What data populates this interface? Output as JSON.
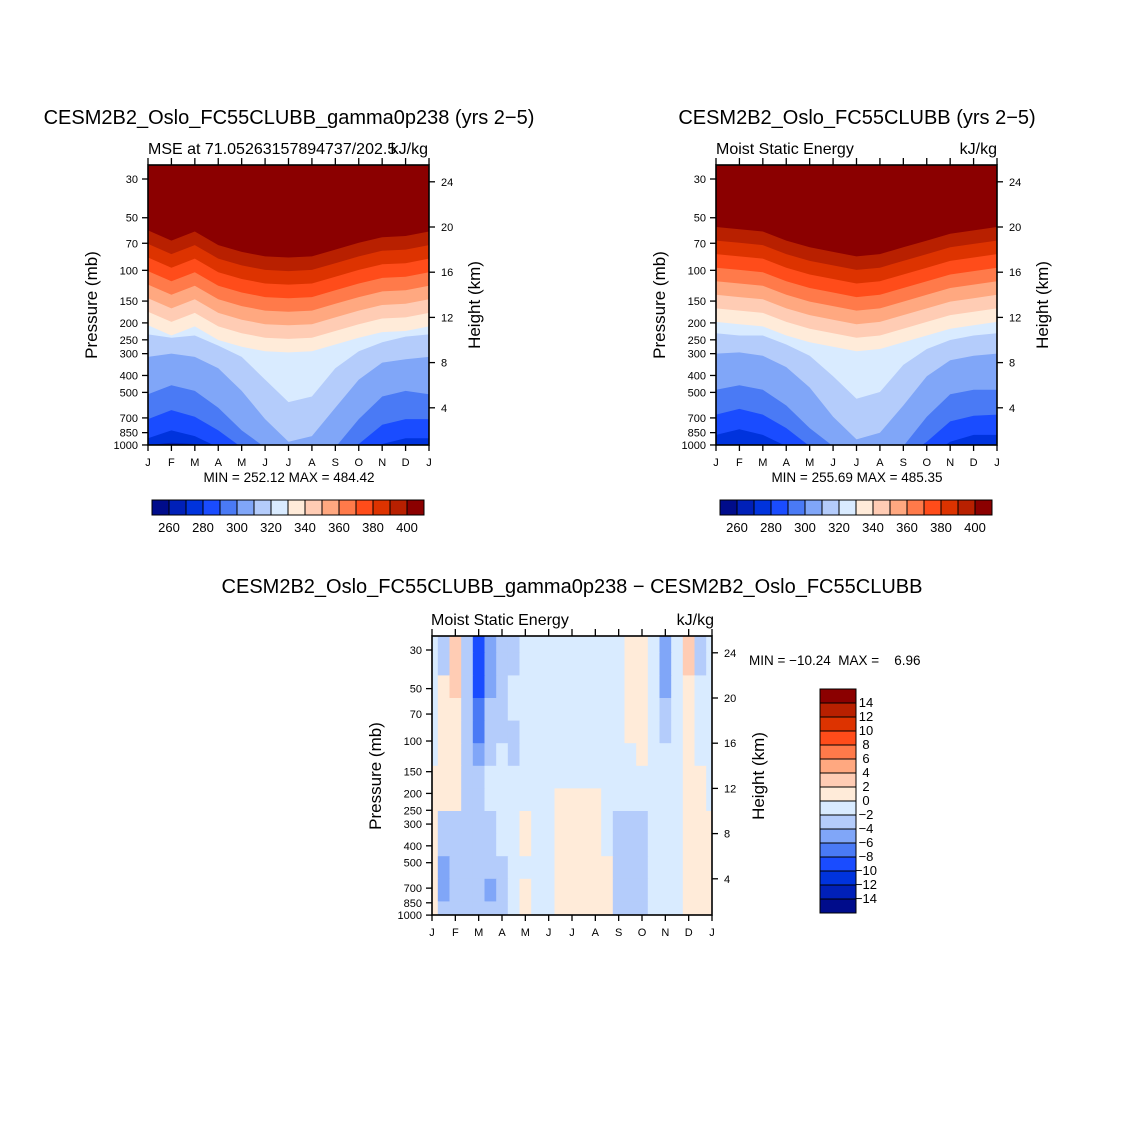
{
  "chart_data": [
    {
      "type": "heatmap",
      "title": "CESM2B2_Oslo_FC55CLUBB_gamma0p238 (yrs 2−5)",
      "subtitle_left": "MSE at 71.05263157894737/202.5",
      "subtitle_right": "kJ/kg",
      "ylabel": "Pressure (mb)",
      "ylabel_right": "Height (km)",
      "x_tick_labels": [
        "J",
        "F",
        "M",
        "A",
        "M",
        "J",
        "J",
        "A",
        "S",
        "O",
        "N",
        "D",
        "J"
      ],
      "y_ticks_pressure": [
        30,
        50,
        70,
        100,
        150,
        200,
        250,
        300,
        400,
        500,
        700,
        850,
        1000
      ],
      "y_ticks_height": [
        4,
        8,
        12,
        16,
        20,
        24
      ],
      "minmax_text": "MIN = 252.12  MAX = 484.42",
      "colorbar": {
        "levels": [
          260,
          270,
          280,
          290,
          300,
          310,
          320,
          330,
          340,
          350,
          360,
          370,
          380,
          390,
          400
        ],
        "labels": [
          "260",
          "280",
          "300",
          "320",
          "340",
          "360",
          "380",
          "400"
        ],
        "colors": [
          "#000c8b",
          "#0020b8",
          "#0033dd",
          "#1a4cff",
          "#4a7af5",
          "#80a6f8",
          "#b4ccfb",
          "#d9ebff",
          "#ffebd9",
          "#ffccb4",
          "#ffa880",
          "#ff7a4a",
          "#ff4c1a",
          "#dd3300",
          "#b82000",
          "#8b0000"
        ]
      },
      "contour_heights_km": {
        "260": [
          0.3,
          0.5,
          0.4,
          -0.5,
          -0.5,
          -0.5,
          -0.5,
          -0.5,
          -0.5,
          -0.5,
          -0.5,
          0.3,
          0.3
        ],
        "270": [
          0.7,
          0.9,
          0.8,
          0.2,
          -0.5,
          -0.5,
          -0.5,
          -0.5,
          -0.5,
          -0.5,
          0.3,
          0.6,
          0.7
        ],
        "280": [
          1.3,
          2.0,
          1.5,
          0.5,
          -0.5,
          -0.5,
          -0.5,
          -0.5,
          -0.5,
          -0.5,
          0.8,
          1.3,
          1.3
        ],
        "290": [
          3.0,
          3.8,
          3.2,
          2.0,
          0.5,
          -0.5,
          -0.5,
          -0.5,
          -0.5,
          0.8,
          2.5,
          3.0,
          3.0
        ],
        "300": [
          5.2,
          6.0,
          5.5,
          4.0,
          2.0,
          0.5,
          -0.5,
          -0.5,
          0.5,
          3.0,
          5.0,
          5.5,
          5.2
        ],
        "310": [
          8.5,
          8.8,
          8.5,
          7.5,
          5.5,
          3.0,
          1.0,
          1.5,
          4.0,
          6.5,
          8.0,
          8.3,
          8.5
        ],
        "320": [
          10.5,
          10.2,
          10.4,
          9.5,
          8.5,
          6.5,
          4.5,
          5.0,
          7.5,
          9.0,
          9.8,
          10.3,
          10.5
        ],
        "330": [
          11.3,
          10.4,
          11.2,
          10.0,
          9.4,
          9.0,
          8.9,
          9.0,
          9.6,
          10.2,
          10.7,
          10.8,
          11.2
        ],
        "340": [
          12.5,
          11.6,
          12.4,
          11.2,
          10.6,
          10.2,
          10.1,
          10.2,
          10.8,
          11.4,
          11.9,
          12.0,
          12.4
        ],
        "350": [
          13.7,
          12.8,
          13.6,
          12.4,
          11.8,
          11.4,
          11.3,
          11.4,
          12.0,
          12.6,
          13.1,
          13.2,
          13.6
        ],
        "360": [
          14.9,
          14.0,
          14.8,
          13.6,
          13.0,
          12.6,
          12.5,
          12.6,
          13.2,
          13.8,
          14.3,
          14.4,
          14.8
        ],
        "370": [
          16.1,
          15.2,
          16.0,
          14.8,
          14.2,
          13.8,
          13.7,
          13.8,
          14.4,
          15.0,
          15.5,
          15.6,
          16.0
        ],
        "380": [
          17.3,
          16.4,
          17.2,
          16.0,
          15.4,
          15.0,
          14.9,
          15.0,
          15.6,
          16.2,
          16.7,
          16.8,
          17.2
        ],
        "390": [
          18.5,
          17.6,
          18.4,
          17.2,
          16.6,
          16.2,
          16.1,
          16.2,
          16.8,
          17.4,
          17.9,
          18.0,
          18.4
        ],
        "400": [
          19.7,
          18.8,
          19.6,
          18.4,
          17.8,
          17.4,
          17.3,
          17.4,
          18.0,
          18.6,
          19.1,
          19.2,
          19.6
        ]
      }
    },
    {
      "type": "heatmap",
      "title": "CESM2B2_Oslo_FC55CLUBB (yrs 2−5)",
      "subtitle_left": "Moist Static Energy",
      "subtitle_right": "kJ/kg",
      "ylabel": "Pressure (mb)",
      "ylabel_right": "Height (km)",
      "x_tick_labels": [
        "J",
        "F",
        "M",
        "A",
        "M",
        "J",
        "J",
        "A",
        "S",
        "O",
        "N",
        "D",
        "J"
      ],
      "y_ticks_pressure": [
        30,
        50,
        70,
        100,
        150,
        200,
        250,
        300,
        400,
        500,
        700,
        850,
        1000
      ],
      "y_ticks_height": [
        4,
        8,
        12,
        16,
        20,
        24
      ],
      "minmax_text": "MIN = 255.69  MAX = 485.35",
      "colorbar": {
        "levels": [
          260,
          270,
          280,
          290,
          300,
          310,
          320,
          330,
          340,
          350,
          360,
          370,
          380,
          390,
          400
        ],
        "labels": [
          "260",
          "280",
          "300",
          "320",
          "340",
          "360",
          "380",
          "400"
        ],
        "colors": [
          "#000c8b",
          "#0020b8",
          "#0033dd",
          "#1a4cff",
          "#4a7af5",
          "#80a6f8",
          "#b4ccfb",
          "#d9ebff",
          "#ffebd9",
          "#ffccb4",
          "#ffa880",
          "#ff7a4a",
          "#ff4c1a",
          "#dd3300",
          "#b82000",
          "#8b0000"
        ]
      },
      "contour_heights_km": {
        "260": [
          0.3,
          0.4,
          0.3,
          -0.5,
          -0.5,
          -0.5,
          -0.5,
          -0.5,
          -0.5,
          -0.5,
          -0.5,
          0.2,
          0.3
        ],
        "270": [
          0.7,
          0.8,
          0.7,
          0.2,
          -0.5,
          -0.5,
          -0.5,
          -0.5,
          -0.5,
          -0.5,
          0.3,
          0.6,
          0.7
        ],
        "280": [
          1.6,
          2.1,
          1.6,
          0.6,
          -0.5,
          -0.5,
          -0.5,
          -0.5,
          -0.5,
          -0.5,
          1.0,
          1.6,
          1.6
        ],
        "290": [
          3.4,
          3.9,
          3.4,
          2.2,
          0.6,
          -0.5,
          -0.5,
          -0.5,
          -0.5,
          1.0,
          2.8,
          3.3,
          3.4
        ],
        "300": [
          5.6,
          6.0,
          5.6,
          4.2,
          2.2,
          0.6,
          -0.5,
          -0.5,
          0.6,
          3.2,
          5.2,
          5.6,
          5.6
        ],
        "310": [
          8.8,
          8.9,
          8.6,
          7.6,
          5.8,
          3.2,
          1.2,
          1.8,
          4.2,
          6.8,
          8.2,
          8.6,
          8.8
        ],
        "320": [
          10.6,
          10.4,
          10.4,
          9.6,
          8.6,
          6.8,
          4.8,
          5.4,
          7.8,
          9.2,
          10.0,
          10.4,
          10.6
        ],
        "330": [
          11.6,
          11.4,
          11.2,
          10.4,
          9.8,
          9.4,
          9.0,
          9.2,
          9.8,
          10.4,
          11.0,
          11.3,
          11.6
        ],
        "340": [
          12.8,
          12.6,
          12.4,
          11.6,
          11.0,
          10.6,
          10.2,
          10.4,
          11.0,
          11.6,
          12.2,
          12.5,
          12.8
        ],
        "350": [
          14.0,
          13.8,
          13.6,
          12.8,
          12.2,
          11.8,
          11.4,
          11.6,
          12.2,
          12.8,
          13.4,
          13.7,
          14.0
        ],
        "360": [
          15.2,
          15.0,
          14.8,
          14.0,
          13.4,
          13.0,
          12.6,
          12.8,
          13.4,
          14.0,
          14.6,
          14.9,
          15.2
        ],
        "370": [
          16.4,
          16.2,
          16.0,
          15.2,
          14.6,
          14.2,
          13.8,
          14.0,
          14.6,
          15.2,
          15.8,
          16.1,
          16.4
        ],
        "380": [
          17.6,
          17.4,
          17.2,
          16.4,
          15.8,
          15.4,
          15.0,
          15.2,
          15.8,
          16.4,
          17.0,
          17.3,
          17.6
        ],
        "390": [
          18.8,
          18.6,
          18.4,
          17.6,
          17.0,
          16.6,
          16.2,
          16.4,
          17.0,
          17.6,
          18.2,
          18.5,
          18.8
        ],
        "400": [
          20.0,
          19.8,
          19.6,
          18.8,
          18.2,
          17.8,
          17.4,
          17.6,
          18.2,
          18.8,
          19.4,
          19.7,
          20.0
        ]
      }
    },
    {
      "type": "heatmap",
      "title": "CESM2B2_Oslo_FC55CLUBB_gamma0p238 − CESM2B2_Oslo_FC55CLUBB",
      "subtitle_left": "Moist Static Energy",
      "subtitle_right": "kJ/kg",
      "ylabel": "Pressure (mb)",
      "ylabel_right": "Height (km)",
      "x_tick_labels": [
        "J",
        "F",
        "M",
        "A",
        "M",
        "J",
        "J",
        "A",
        "S",
        "O",
        "N",
        "D",
        "J"
      ],
      "y_ticks_pressure": [
        30,
        50,
        70,
        100,
        150,
        200,
        250,
        300,
        400,
        500,
        700,
        850,
        1000
      ],
      "y_ticks_height": [
        4,
        8,
        12,
        16,
        20,
        24
      ],
      "minmax_text": "MIN = −10.24  MAX =    6.96",
      "colorbar": {
        "levels": [
          -14,
          -12,
          -10,
          -8,
          -6,
          -4,
          -2,
          0,
          2,
          4,
          6,
          8,
          10,
          12,
          14
        ],
        "labels": [
          "14",
          "12",
          "10",
          "8",
          "6",
          "4",
          "2",
          "0",
          "−2",
          "−4",
          "−6",
          "−8",
          "−10",
          "−12",
          "−14"
        ],
        "colors": [
          "#000c8b",
          "#0020b8",
          "#0033dd",
          "#1a4cff",
          "#4a7af5",
          "#80a6f8",
          "#b4ccfb",
          "#d9ebff",
          "#ffebd9",
          "#ffccb4",
          "#ffa880",
          "#ff7a4a",
          "#ff4c1a",
          "#dd3300",
          "#b82000",
          "#8b0000"
        ]
      },
      "grid_x_half_months": 25,
      "grid_height_rows_km": [
        24,
        22,
        20,
        18,
        16,
        14,
        12,
        10,
        8,
        6,
        4,
        2,
        0
      ],
      "grid_values": [
        [
          -1,
          -3,
          3,
          -3,
          -9,
          -5,
          -3,
          -3,
          -1,
          -1,
          -1,
          -1,
          -1,
          -1,
          -1,
          -1,
          -1,
          1,
          1,
          -1,
          -5,
          -1,
          3,
          -3,
          -1
        ],
        [
          -1,
          -3,
          3,
          -3,
          -9,
          -5,
          -3,
          -3,
          -1,
          -1,
          -1,
          -1,
          -1,
          -1,
          -1,
          -1,
          -1,
          1,
          1,
          -1,
          -5,
          -1,
          3,
          -3,
          -1
        ],
        [
          -1,
          1,
          3,
          -3,
          -9,
          -5,
          -3,
          -1,
          -1,
          -1,
          -1,
          -1,
          -1,
          -1,
          -1,
          -1,
          -1,
          1,
          1,
          -1,
          -5,
          -1,
          1,
          -1,
          -1
        ],
        [
          -1,
          1,
          1,
          -3,
          -7,
          -3,
          -3,
          -1,
          -1,
          -1,
          -1,
          -1,
          -1,
          -1,
          -1,
          -1,
          -1,
          1,
          1,
          -1,
          -3,
          -1,
          1,
          -1,
          -1
        ],
        [
          -1,
          1,
          1,
          -3,
          -7,
          -3,
          -3,
          -3,
          -1,
          -1,
          -1,
          -1,
          -1,
          -1,
          -1,
          -1,
          -1,
          1,
          1,
          -1,
          -3,
          -1,
          1,
          -1,
          -1
        ],
        [
          -1,
          1,
          1,
          -3,
          -5,
          -3,
          -1,
          -3,
          -1,
          -1,
          -1,
          -1,
          -1,
          -1,
          -1,
          -1,
          -1,
          -1,
          1,
          -1,
          -1,
          -1,
          1,
          -1,
          -1
        ],
        [
          1,
          1,
          1,
          -3,
          -3,
          -1,
          -1,
          -1,
          -1,
          -1,
          -1,
          -1,
          -1,
          -1,
          -1,
          -1,
          -1,
          -1,
          -1,
          -1,
          -1,
          -1,
          1,
          1,
          -1
        ],
        [
          1,
          1,
          1,
          -3,
          -3,
          -1,
          -1,
          -1,
          -1,
          -1,
          -1,
          1,
          1,
          1,
          1,
          -1,
          -1,
          -1,
          -1,
          -1,
          -1,
          -1,
          1,
          1,
          -1
        ],
        [
          1,
          -3,
          -3,
          -3,
          -3,
          -3,
          -1,
          -1,
          1,
          -1,
          -1,
          1,
          1,
          1,
          1,
          -1,
          -3,
          -3,
          -3,
          -1,
          -1,
          -1,
          1,
          1,
          1
        ],
        [
          1,
          -3,
          -3,
          -3,
          -3,
          -3,
          -1,
          -1,
          1,
          -1,
          -1,
          1,
          1,
          1,
          1,
          -1,
          -3,
          -3,
          -3,
          -1,
          -1,
          -1,
          1,
          1,
          1
        ],
        [
          1,
          -5,
          -3,
          -3,
          -3,
          -3,
          -3,
          -1,
          -1,
          -1,
          -1,
          1,
          1,
          1,
          1,
          1,
          -3,
          -3,
          -3,
          -1,
          -1,
          -1,
          1,
          1,
          1
        ],
        [
          1,
          -5,
          -3,
          -3,
          -3,
          -5,
          -3,
          -1,
          1,
          -1,
          -1,
          1,
          1,
          1,
          1,
          1,
          -3,
          -3,
          -3,
          -1,
          -1,
          -1,
          1,
          1,
          1
        ],
        [
          1,
          -3,
          -3,
          -3,
          -3,
          -3,
          -3,
          -1,
          1,
          -1,
          -1,
          1,
          1,
          1,
          1,
          1,
          -3,
          -3,
          -3,
          -1,
          -1,
          -1,
          1,
          1,
          1
        ]
      ]
    }
  ]
}
